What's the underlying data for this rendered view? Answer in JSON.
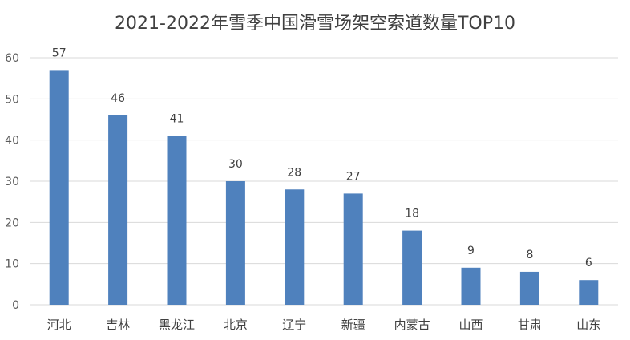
{
  "chart_data": {
    "type": "bar",
    "title": "2021-2022年雪季中国滑雪场架空索道数量TOP10",
    "categories": [
      "河北",
      "吉林",
      "黑龙江",
      "北京",
      "辽宁",
      "新疆",
      "内蒙古",
      "山西",
      "甘肃",
      "山东"
    ],
    "values": [
      57,
      46,
      41,
      30,
      28,
      27,
      18,
      9,
      8,
      6
    ],
    "data_labels": [
      "57",
      "46",
      "41",
      "30",
      "28",
      "27",
      "18",
      "9",
      "8",
      "6"
    ],
    "ylim": [
      0,
      60
    ],
    "yticks": [
      "0",
      "10",
      "20",
      "30",
      "40",
      "50",
      "60"
    ],
    "xlabel": "",
    "ylabel": "",
    "grid": true,
    "legend": "none",
    "bar_color": "#4F81BD",
    "grid_color": "#D9D9D9"
  }
}
